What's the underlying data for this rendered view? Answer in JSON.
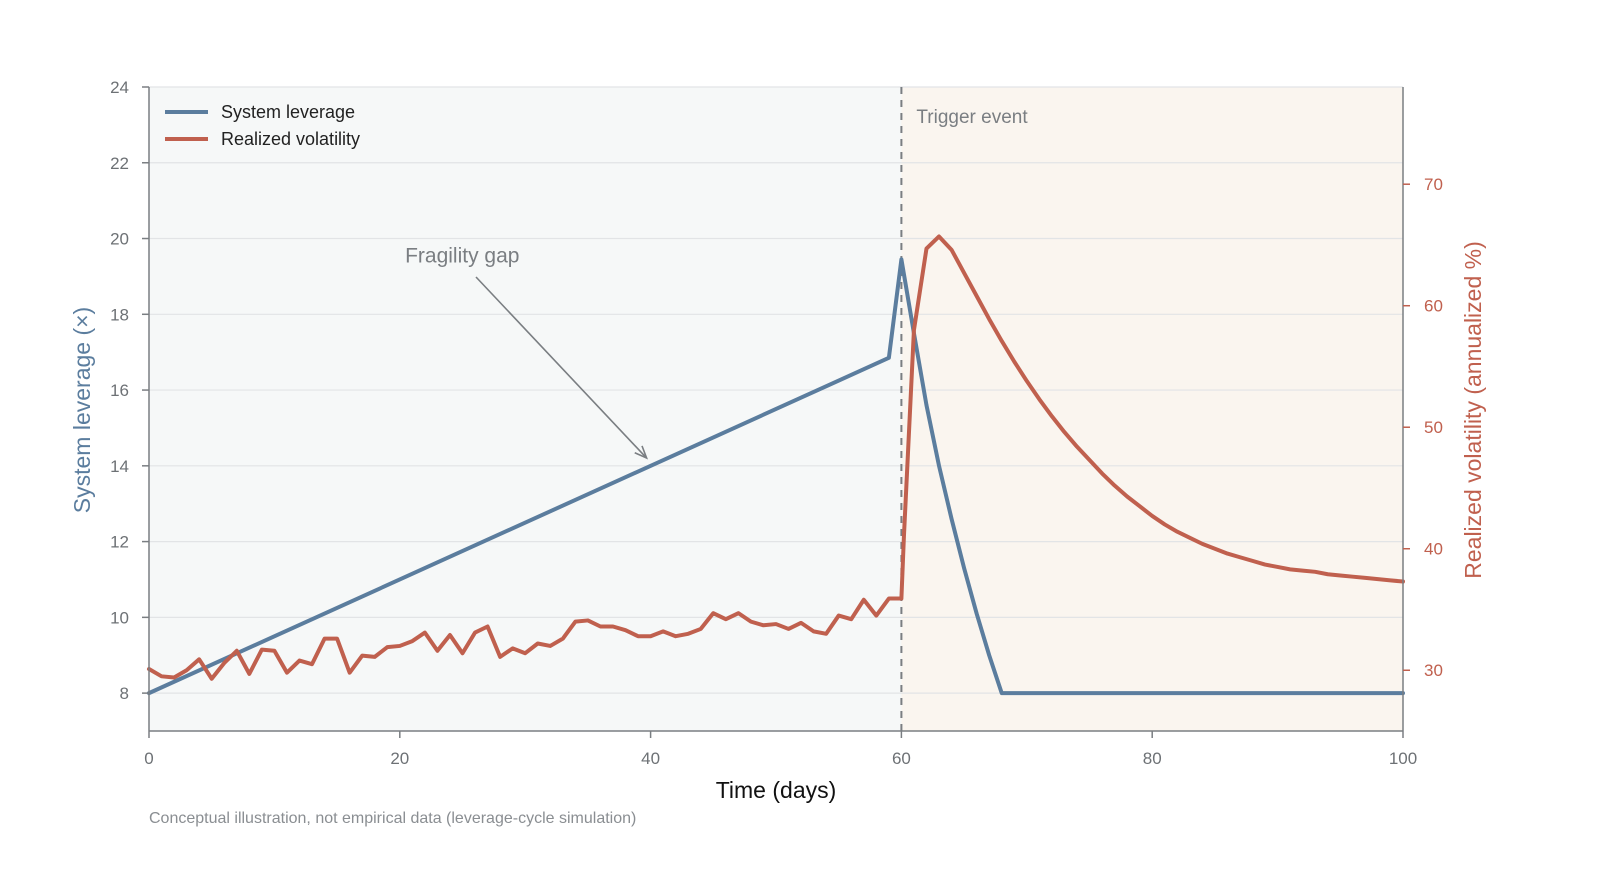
{
  "chart_data": {
    "type": "line",
    "title": "",
    "xlabel": "Time (days)",
    "ylabel_left": "System leverage (×)",
    "ylabel_right": "Realized volatility (annualized %)",
    "caption": "Conceptual illustration, not empirical data (leverage-cycle simulation)",
    "xlim": [
      0,
      100
    ],
    "ylim_left": [
      7,
      24
    ],
    "ylim_right": [
      25,
      78
    ],
    "x_ticks": [
      "0",
      "20",
      "40",
      "60",
      "80",
      "100"
    ],
    "y_left_ticks": [
      "8",
      "10",
      "12",
      "14",
      "16",
      "18",
      "20",
      "22",
      "24"
    ],
    "y_right_ticks": [
      "30",
      "40",
      "50",
      "60",
      "70"
    ],
    "grid": true,
    "legend_placement": "top-left",
    "trigger": {
      "x": 60,
      "label": "Trigger event"
    },
    "annotation": {
      "text": "Fragility gap",
      "text_x": 20.5,
      "text_y": 19.5,
      "arrow_to": [
        40,
        14.1
      ]
    },
    "regions": [
      {
        "name": "pre-trigger",
        "x": [
          0,
          60
        ],
        "color": "#f6f8f8"
      },
      {
        "name": "post-trigger",
        "x": [
          60,
          100
        ],
        "color": "#faf5ef"
      }
    ],
    "series": [
      {
        "name": "System leverage",
        "axis": "left",
        "color": "#5b7d9e",
        "points": [
          [
            0,
            8
          ],
          [
            59,
            16.85
          ],
          [
            60,
            19.45
          ],
          [
            61,
            17.5
          ],
          [
            62,
            15.6
          ],
          [
            63,
            14.0
          ],
          [
            64,
            12.6
          ],
          [
            65,
            11.3
          ],
          [
            66,
            10.1
          ],
          [
            67,
            9.0
          ],
          [
            68,
            8
          ],
          [
            100,
            8
          ]
        ]
      },
      {
        "name": "Realized volatility",
        "axis": "right",
        "color": "#c0604e",
        "x": [
          0,
          1,
          2,
          3,
          4,
          5,
          6,
          7,
          8,
          9,
          10,
          11,
          12,
          13,
          14,
          15,
          16,
          17,
          18,
          19,
          20,
          21,
          22,
          23,
          24,
          25,
          26,
          27,
          28,
          29,
          30,
          31,
          32,
          33,
          34,
          35,
          36,
          37,
          38,
          39,
          40,
          41,
          42,
          43,
          44,
          45,
          46,
          47,
          48,
          49,
          50,
          51,
          52,
          53,
          54,
          55,
          56,
          57,
          58,
          59,
          60,
          60.2,
          61,
          62,
          63,
          64,
          65,
          66,
          67,
          68,
          69,
          70,
          71,
          72,
          73,
          74,
          75,
          76,
          77,
          78,
          79,
          80,
          81,
          82,
          83,
          84,
          85,
          86,
          87,
          88,
          89,
          90,
          91,
          92,
          93,
          94,
          95,
          96,
          97,
          98,
          99,
          100
        ],
        "values": [
          30.1,
          29.5,
          29.4,
          30.0,
          30.9,
          29.3,
          30.6,
          31.6,
          29.7,
          31.7,
          31.6,
          29.8,
          30.8,
          30.5,
          32.6,
          32.6,
          29.8,
          31.2,
          31.1,
          31.9,
          32.0,
          32.4,
          33.1,
          31.6,
          32.9,
          31.4,
          33.1,
          33.6,
          31.1,
          31.8,
          31.4,
          32.2,
          32.0,
          32.6,
          34.0,
          34.1,
          33.6,
          33.6,
          33.3,
          32.8,
          32.8,
          33.2,
          32.8,
          33.0,
          33.4,
          34.7,
          34.2,
          34.7,
          34.0,
          33.7,
          33.8,
          33.4,
          33.9,
          33.2,
          33.0,
          34.5,
          34.2,
          35.8,
          34.5,
          35.9,
          35.9,
          41.0,
          58.0,
          64.7,
          65.7,
          64.6,
          62.7,
          60.8,
          58.9,
          57.1,
          55.4,
          53.8,
          52.3,
          50.9,
          49.6,
          48.4,
          47.3,
          46.2,
          45.2,
          44.3,
          43.5,
          42.7,
          42.0,
          41.4,
          40.9,
          40.4,
          40.0,
          39.6,
          39.3,
          39.0,
          38.7,
          38.5,
          38.3,
          38.2,
          38.1,
          37.9,
          37.8,
          37.7,
          37.6,
          37.5,
          37.4,
          37.3
        ]
      }
    ]
  }
}
